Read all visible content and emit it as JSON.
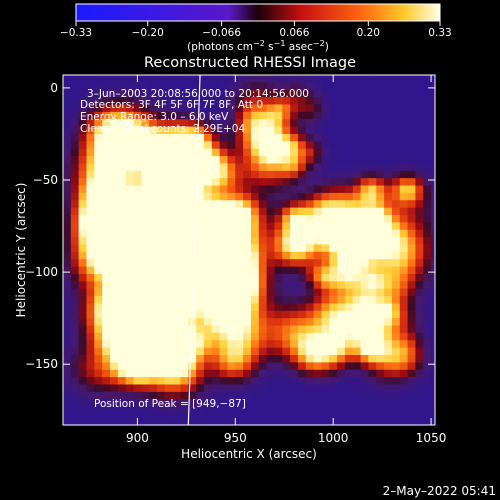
{
  "chart_data": {
    "type": "heatmap",
    "title": "Reconstructed RHESSI Image",
    "xlabel": "Heliocentric X (arcsec)",
    "ylabel": "Heliocentric Y (arcsec)",
    "xlim": [
      862,
      1052
    ],
    "ylim": [
      -183,
      7
    ],
    "x_ticks": [
      900,
      950,
      1000,
      1050
    ],
    "y_ticks": [
      0,
      -50,
      -100,
      -150
    ],
    "x_tick_labels": [
      "900",
      "950",
      "1000",
      "1050"
    ],
    "y_tick_labels": [
      "0",
      "−50",
      "−100",
      "−150"
    ],
    "colorbar": {
      "range": [
        -0.33,
        0.33
      ],
      "tick_labels": [
        "−0.33",
        "−0.20",
        "−0.066",
        "0.066",
        "0.20",
        "0.33"
      ],
      "tick_values": [
        -0.33,
        -0.2,
        -0.066,
        0.066,
        0.2,
        0.33
      ],
      "unit_main": "(photons cm",
      "unit_sup1": "−2",
      "unit_mid1": " s",
      "unit_sup2": "−1",
      "unit_mid2": " asec",
      "unit_sup3": "−2",
      "unit_end": ")"
    },
    "annotations": [
      "3–Jun–2003 20:08:56.000 to 20:14:56.000",
      "Detectors: 3F 4F 5F 6F 7F 8F, Att 0",
      "Energy Range: 3.0 – 6.0 keV",
      "Clean    Total counts: 2.29E+04"
    ],
    "peak_label": "Position of Peak = [949,−87]",
    "peak": [
      949,
      -87
    ],
    "limb_line": [
      [
        932,
        7
      ],
      [
        926,
        -183
      ]
    ],
    "grid": false,
    "timestamp": "2–May–2022 05:41"
  }
}
